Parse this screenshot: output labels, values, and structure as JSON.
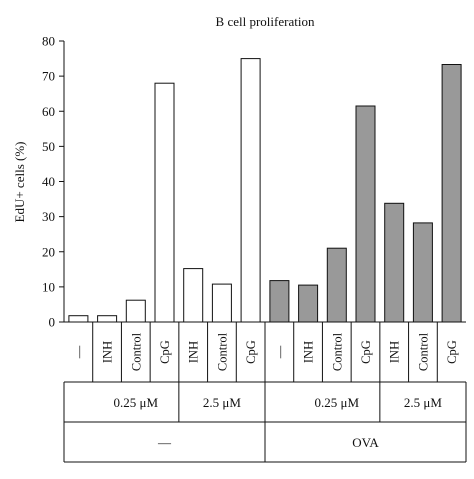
{
  "chart_data": {
    "type": "bar",
    "title": "B cell proliferation",
    "ylabel": "EdU+ cells (%)",
    "ylim": [
      0,
      80
    ],
    "yticks": [
      0,
      10,
      20,
      30,
      40,
      50,
      60,
      70,
      80
    ],
    "grid": false,
    "categories": [
      "—",
      "INH",
      "Control",
      "CpG",
      "INH",
      "Control",
      "CpG",
      "—",
      "INH",
      "Control",
      "CpG",
      "INH",
      "Control",
      "CpG"
    ],
    "values": [
      1.8,
      1.8,
      6.2,
      68,
      15.2,
      10.8,
      75,
      11.8,
      10.5,
      21,
      61.5,
      33.8,
      28.2,
      73.3
    ],
    "bar_fill": [
      "#ffffff",
      "#ffffff",
      "#ffffff",
      "#ffffff",
      "#ffffff",
      "#ffffff",
      "#ffffff",
      "#999999",
      "#999999",
      "#999999",
      "#999999",
      "#999999",
      "#999999",
      "#999999"
    ],
    "dose_groups": [
      {
        "label": "0.25 μM",
        "start": 1,
        "end": 3
      },
      {
        "label": "2.5 μM",
        "start": 4,
        "end": 6
      },
      {
        "label": "0.25 μM",
        "start": 8,
        "end": 10
      },
      {
        "label": "2.5 μM",
        "start": 11,
        "end": 13
      }
    ],
    "treatment_groups": [
      {
        "label": "—",
        "start": 0,
        "end": 6
      },
      {
        "label": "OVA",
        "start": 7,
        "end": 13
      }
    ]
  }
}
